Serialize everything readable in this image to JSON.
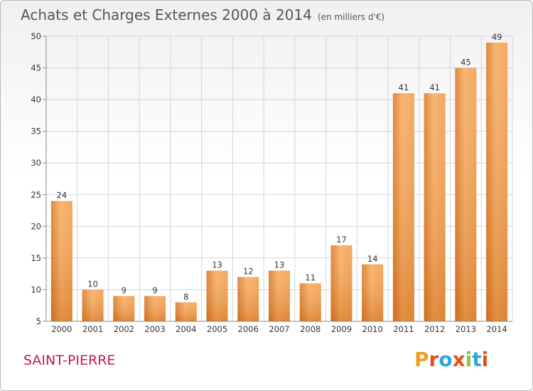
{
  "header": {
    "title": "Achats et Charges Externes 2000 à 2014",
    "subtitle": "(en milliers d'€)"
  },
  "commune": "SAINT-PIERRE",
  "logo": {
    "text": "Proxiti",
    "colors": [
      "#f0a020",
      "#e84e1b",
      "#2aa6de",
      "#e84e1b",
      "#8cc63f",
      "#2aa6de",
      "#e84e1b"
    ]
  },
  "colors": {
    "bar_light": "#f7a95a",
    "bar_dark": "#d8741e",
    "grid": "#d6d6d6"
  },
  "chart_data": {
    "type": "bar",
    "title": "Achats et Charges Externes 2000 à 2014",
    "categories": [
      "2000",
      "2001",
      "2002",
      "2003",
      "2004",
      "2005",
      "2006",
      "2007",
      "2008",
      "2009",
      "2010",
      "2011",
      "2012",
      "2013",
      "2014"
    ],
    "values": [
      24,
      10,
      9,
      9,
      8,
      13,
      12,
      13,
      11,
      17,
      14,
      41,
      41,
      45,
      49
    ],
    "ylim": [
      5,
      50
    ],
    "yticks": [
      5,
      10,
      15,
      20,
      25,
      30,
      35,
      40,
      45,
      50
    ],
    "grid": true
  }
}
